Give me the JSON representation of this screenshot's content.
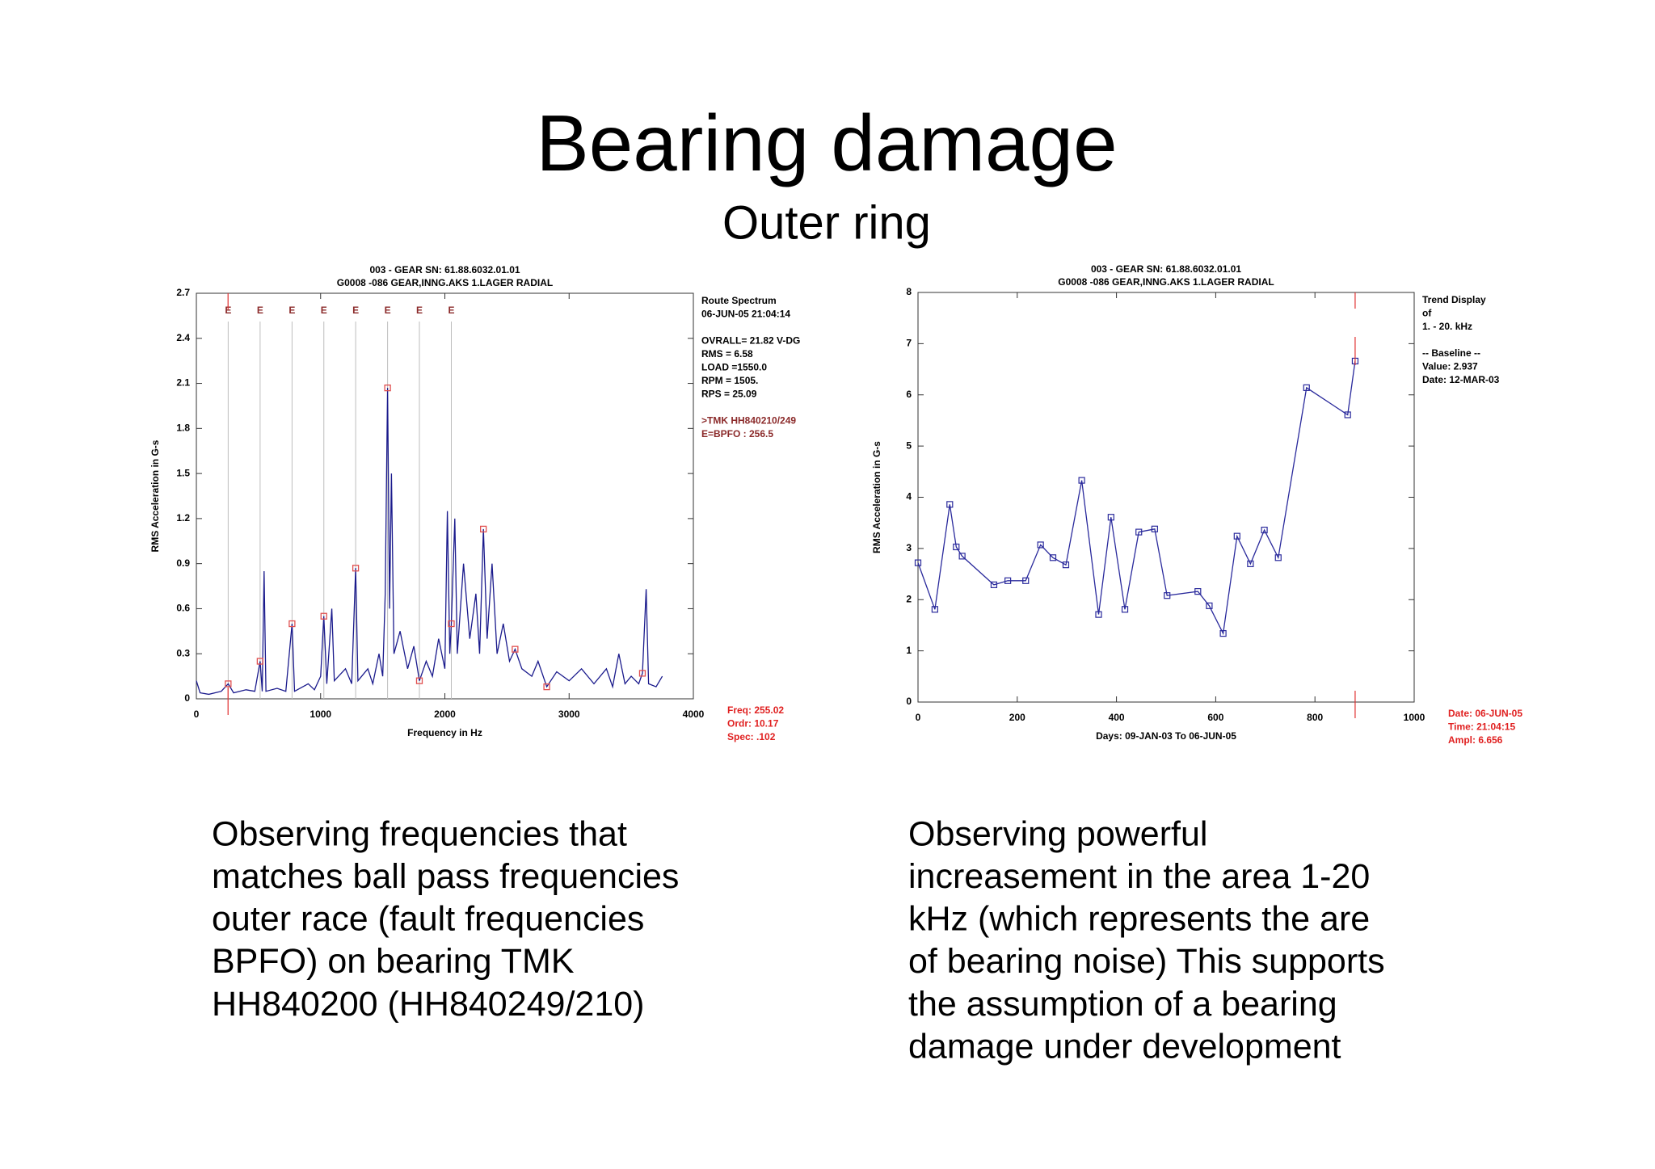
{
  "title": "Bearing damage",
  "subtitle": "Outer ring",
  "chart_data": [
    {
      "type": "line",
      "header": [
        "003  - GEAR SN: 61.88.6032.01.01",
        "G0008     -086  GEAR,INNG.AKS 1.LAGER RADIAL"
      ],
      "x_label": "Frequency in Hz",
      "y_label": "RMS Acceleration in G-s",
      "xlim": [
        0,
        4000
      ],
      "xticks": [
        0,
        1000,
        2000,
        3000,
        4000
      ],
      "ylim": [
        0,
        2.7
      ],
      "yticks": [
        0,
        0.3,
        0.6,
        0.9,
        1.2,
        1.5,
        1.8,
        2.1,
        2.4,
        2.7
      ],
      "series": [
        {
          "color": "#1a1a8c",
          "x": [
            0,
            30,
            100,
            200,
            256,
            300,
            400,
            470,
            513,
            530,
            545,
            560,
            650,
            720,
            770,
            790,
            900,
            950,
            1000,
            1026,
            1050,
            1090,
            1110,
            1200,
            1250,
            1282,
            1300,
            1380,
            1420,
            1470,
            1500,
            1520,
            1539,
            1555,
            1570,
            1590,
            1640,
            1700,
            1750,
            1795,
            1850,
            1900,
            1950,
            2000,
            2020,
            2040,
            2052,
            2080,
            2100,
            2150,
            2200,
            2250,
            2280,
            2310,
            2340,
            2380,
            2420,
            2470,
            2520,
            2565,
            2620,
            2700,
            2750,
            2820,
            2900,
            3000,
            3100,
            3200,
            3300,
            3350,
            3400,
            3450,
            3500,
            3560,
            3590,
            3620,
            3640,
            3700,
            3750
          ],
          "values": [
            0.12,
            0.04,
            0.03,
            0.05,
            0.1,
            0.04,
            0.06,
            0.05,
            0.25,
            0.05,
            0.85,
            0.05,
            0.07,
            0.05,
            0.5,
            0.05,
            0.1,
            0.06,
            0.15,
            0.55,
            0.1,
            0.6,
            0.12,
            0.2,
            0.1,
            0.87,
            0.12,
            0.2,
            0.1,
            0.3,
            0.15,
            0.7,
            2.07,
            0.6,
            1.5,
            0.3,
            0.45,
            0.2,
            0.35,
            0.12,
            0.25,
            0.15,
            0.4,
            0.2,
            1.25,
            0.3,
            0.5,
            1.2,
            0.3,
            0.9,
            0.4,
            0.7,
            0.3,
            1.13,
            0.4,
            0.9,
            0.3,
            0.5,
            0.25,
            0.33,
            0.2,
            0.15,
            0.25,
            0.08,
            0.18,
            0.12,
            0.2,
            0.1,
            0.2,
            0.08,
            0.3,
            0.1,
            0.15,
            0.1,
            0.17,
            0.73,
            0.1,
            0.08,
            0.15
          ]
        }
      ],
      "markers": {
        "color": "#e05050",
        "x": [
          256,
          513,
          770,
          1026,
          1282,
          1539,
          1795,
          2052,
          2310,
          2565,
          2820,
          3590
        ],
        "values": [
          0.1,
          0.25,
          0.5,
          0.55,
          0.87,
          2.07,
          0.12,
          0.5,
          1.13,
          0.33,
          0.08,
          0.17
        ]
      },
      "fault_lines": {
        "label": "E",
        "color": "#8b2a2a",
        "x": [
          256,
          513,
          770,
          1026,
          1282,
          1539,
          1795,
          2052
        ]
      },
      "cursor_x": 255.02,
      "info": [
        {
          "color": "#000000",
          "lines": [
            "Route Spectrum",
            "06-JUN-05  21:04:14"
          ]
        },
        {
          "color": "#000000",
          "lines": [
            "OVRALL=  21.82 V-DG",
            "RMS =  6.58",
            "LOAD =1550.0",
            "RPM =  1505.",
            "RPS =  25.09"
          ]
        },
        {
          "color": "#8b2a2a",
          "lines": [
            ">TMK HH840210/249",
            "E=BPFO     : 256.5"
          ]
        }
      ],
      "cursor_info": [
        "Freq:   255.02",
        "Ordr:    10.17",
        "Spec:     .102"
      ]
    },
    {
      "type": "line",
      "header": [
        "003  - GEAR SN: 61.88.6032.01.01",
        "G0008     -086  GEAR,INNG.AKS 1.LAGER RADIAL"
      ],
      "x_label": "Days:  09-JAN-03  To  06-JUN-05",
      "y_label": "RMS Acceleration in G-s",
      "xlim": [
        0,
        1000
      ],
      "xticks": [
        0,
        200,
        400,
        600,
        800,
        1000
      ],
      "ylim": [
        0,
        8
      ],
      "yticks": [
        0,
        1,
        2,
        3,
        4,
        5,
        6,
        7,
        8
      ],
      "series": [
        {
          "color": "#2a2a9c",
          "marker": "square",
          "x": [
            0,
            34,
            64,
            77,
            89,
            153,
            181,
            217,
            247,
            272,
            298,
            330,
            364,
            389,
            417,
            445,
            477,
            502,
            564,
            587,
            615,
            643,
            670,
            698,
            726,
            783,
            866,
            881
          ],
          "values": [
            2.72,
            1.81,
            3.86,
            3.03,
            2.85,
            2.29,
            2.37,
            2.37,
            3.07,
            2.82,
            2.68,
            4.33,
            1.71,
            3.61,
            1.81,
            3.32,
            3.38,
            2.08,
            2.16,
            1.88,
            1.34,
            3.24,
            2.7,
            3.36,
            2.82,
            6.14,
            5.61,
            6.66
          ]
        }
      ],
      "cursor_x": 881,
      "info": [
        {
          "color": "#000000",
          "lines": [
            "Trend Display",
            "of",
            "1. - 20. kHz"
          ]
        },
        {
          "color": "#000000",
          "lines": [
            "-- Baseline --",
            "Value:   2.937",
            "Date:   12-MAR-03"
          ]
        }
      ],
      "cursor_info": [
        "Date:  06-JUN-05",
        "Time:  21:04:15",
        "Ampl:   6.656"
      ]
    }
  ],
  "captions": [
    [
      "Observing frequencies that",
      "matches ball pass frequencies",
      "outer race (fault frequencies",
      "BPFO) on bearing  TMK",
      "HH840200 (HH840249/210)"
    ],
    [
      "Observing powerful",
      "increasement in the area 1-20",
      "kHz (which represents the are",
      "of bearing noise) This supports",
      "the assumption of a bearing",
      "damage under development"
    ]
  ]
}
